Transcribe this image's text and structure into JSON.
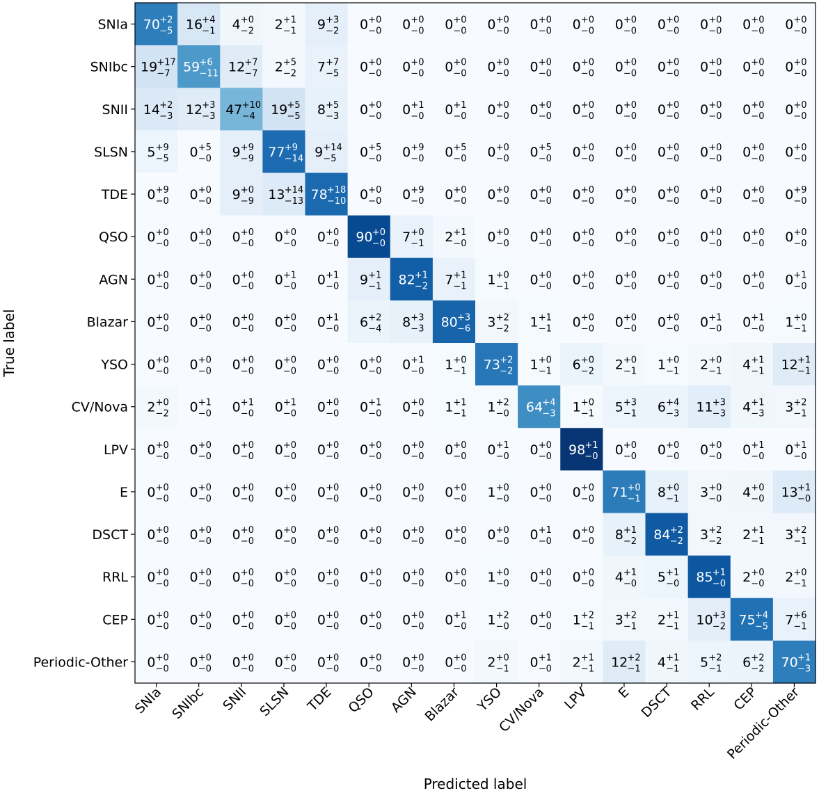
{
  "chart_data": {
    "type": "heatmap",
    "title": "",
    "xlabel": "Predicted label",
    "ylabel": "True label",
    "classes": [
      "SNIa",
      "SNIbc",
      "SNII",
      "SLSN",
      "TDE",
      "QSO",
      "AGN",
      "Blazar",
      "YSO",
      "CV/Nova",
      "LPV",
      "E",
      "DSCT",
      "RRL",
      "CEP",
      "Periodic-Other"
    ],
    "value_range": [
      0,
      100
    ],
    "colormap": "Blues",
    "values": [
      [
        70,
        16,
        4,
        2,
        9,
        0,
        0,
        0,
        0,
        0,
        0,
        0,
        0,
        0,
        0,
        0
      ],
      [
        19,
        59,
        12,
        2,
        7,
        0,
        0,
        0,
        0,
        0,
        0,
        0,
        0,
        0,
        0,
        0
      ],
      [
        14,
        12,
        47,
        19,
        8,
        0,
        0,
        0,
        0,
        0,
        0,
        0,
        0,
        0,
        0,
        0
      ],
      [
        5,
        0,
        9,
        77,
        9,
        0,
        0,
        0,
        0,
        0,
        0,
        0,
        0,
        0,
        0,
        0
      ],
      [
        0,
        0,
        9,
        13,
        78,
        0,
        0,
        0,
        0,
        0,
        0,
        0,
        0,
        0,
        0,
        0
      ],
      [
        0,
        0,
        0,
        0,
        0,
        90,
        7,
        2,
        0,
        0,
        0,
        0,
        0,
        0,
        0,
        0
      ],
      [
        0,
        0,
        0,
        0,
        0,
        9,
        82,
        7,
        1,
        0,
        0,
        0,
        0,
        0,
        0,
        0
      ],
      [
        0,
        0,
        0,
        0,
        0,
        6,
        8,
        80,
        3,
        1,
        0,
        0,
        0,
        0,
        0,
        1
      ],
      [
        0,
        0,
        0,
        0,
        0,
        0,
        0,
        1,
        73,
        1,
        6,
        2,
        1,
        2,
        4,
        12
      ],
      [
        2,
        0,
        0,
        0,
        0,
        0,
        0,
        1,
        1,
        64,
        1,
        5,
        6,
        11,
        4,
        3
      ],
      [
        0,
        0,
        0,
        0,
        0,
        0,
        0,
        0,
        0,
        0,
        98,
        0,
        0,
        0,
        0,
        0
      ],
      [
        0,
        0,
        0,
        0,
        0,
        0,
        0,
        0,
        1,
        0,
        0,
        71,
        8,
        3,
        4,
        13
      ],
      [
        0,
        0,
        0,
        0,
        0,
        0,
        0,
        0,
        0,
        0,
        0,
        8,
        84,
        3,
        2,
        3
      ],
      [
        0,
        0,
        0,
        0,
        0,
        0,
        0,
        0,
        1,
        0,
        0,
        4,
        5,
        85,
        2,
        2
      ],
      [
        0,
        0,
        0,
        0,
        0,
        0,
        0,
        0,
        1,
        0,
        1,
        3,
        2,
        10,
        75,
        7
      ],
      [
        0,
        0,
        0,
        0,
        0,
        0,
        0,
        0,
        2,
        0,
        2,
        12,
        4,
        5,
        6,
        70
      ]
    ],
    "err_plus": [
      [
        2,
        4,
        0,
        1,
        3,
        0,
        0,
        0,
        0,
        0,
        0,
        0,
        0,
        0,
        0,
        0
      ],
      [
        17,
        6,
        7,
        5,
        7,
        0,
        0,
        0,
        0,
        0,
        0,
        0,
        0,
        0,
        0,
        0
      ],
      [
        2,
        3,
        10,
        5,
        5,
        0,
        1,
        1,
        0,
        0,
        0,
        0,
        0,
        0,
        0,
        0
      ],
      [
        9,
        5,
        9,
        9,
        14,
        5,
        9,
        5,
        0,
        5,
        0,
        0,
        0,
        0,
        0,
        0
      ],
      [
        9,
        0,
        0,
        14,
        18,
        0,
        9,
        0,
        0,
        0,
        0,
        0,
        0,
        0,
        0,
        9
      ],
      [
        0,
        0,
        0,
        0,
        0,
        0,
        0,
        1,
        0,
        0,
        0,
        0,
        0,
        0,
        0,
        0
      ],
      [
        0,
        0,
        0,
        1,
        1,
        1,
        1,
        1,
        0,
        0,
        0,
        0,
        0,
        0,
        0,
        1
      ],
      [
        0,
        0,
        0,
        0,
        1,
        2,
        3,
        3,
        2,
        1,
        0,
        0,
        0,
        1,
        1,
        0
      ],
      [
        0,
        0,
        0,
        0,
        0,
        0,
        1,
        0,
        2,
        0,
        0,
        0,
        0,
        0,
        1,
        1
      ],
      [
        0,
        1,
        1,
        1,
        0,
        1,
        0,
        1,
        2,
        4,
        0,
        3,
        4,
        3,
        1,
        2
      ],
      [
        0,
        0,
        0,
        0,
        0,
        0,
        0,
        0,
        1,
        0,
        1,
        0,
        0,
        0,
        1,
        1
      ],
      [
        0,
        0,
        0,
        0,
        0,
        0,
        0,
        0,
        0,
        0,
        0,
        0,
        0,
        0,
        0,
        1
      ],
      [
        0,
        0,
        0,
        0,
        0,
        0,
        0,
        0,
        0,
        1,
        0,
        1,
        2,
        2,
        1,
        2
      ],
      [
        0,
        0,
        0,
        0,
        0,
        0,
        0,
        0,
        0,
        0,
        0,
        1,
        1,
        1,
        0,
        0
      ],
      [
        0,
        0,
        0,
        0,
        0,
        0,
        0,
        1,
        2,
        0,
        2,
        2,
        1,
        3,
        4,
        6
      ],
      [
        0,
        0,
        0,
        0,
        0,
        0,
        0,
        0,
        0,
        1,
        1,
        2,
        1,
        2,
        2,
        1
      ]
    ],
    "err_minus": [
      [
        5,
        1,
        2,
        1,
        2,
        0,
        0,
        0,
        0,
        0,
        0,
        0,
        0,
        0,
        0,
        0
      ],
      [
        7,
        11,
        7,
        2,
        5,
        0,
        0,
        0,
        0,
        0,
        0,
        0,
        0,
        0,
        0,
        0
      ],
      [
        3,
        3,
        4,
        5,
        3,
        0,
        0,
        0,
        0,
        0,
        0,
        0,
        0,
        0,
        0,
        0
      ],
      [
        5,
        0,
        9,
        14,
        5,
        0,
        0,
        0,
        0,
        0,
        0,
        0,
        0,
        0,
        0,
        0
      ],
      [
        0,
        0,
        9,
        13,
        10,
        0,
        0,
        0,
        0,
        0,
        0,
        0,
        0,
        0,
        0,
        0
      ],
      [
        0,
        0,
        0,
        0,
        0,
        0,
        1,
        0,
        0,
        0,
        0,
        0,
        0,
        0,
        0,
        0
      ],
      [
        0,
        0,
        0,
        0,
        0,
        1,
        2,
        1,
        1,
        0,
        0,
        0,
        0,
        0,
        0,
        0
      ],
      [
        0,
        0,
        0,
        0,
        0,
        4,
        3,
        6,
        2,
        1,
        0,
        0,
        0,
        0,
        0,
        1
      ],
      [
        0,
        0,
        0,
        0,
        0,
        0,
        0,
        1,
        2,
        1,
        2,
        1,
        1,
        1,
        1,
        1
      ],
      [
        2,
        0,
        0,
        0,
        0,
        0,
        0,
        1,
        0,
        3,
        1,
        1,
        3,
        3,
        3,
        1
      ],
      [
        0,
        0,
        0,
        0,
        0,
        0,
        0,
        0,
        0,
        0,
        0,
        0,
        0,
        0,
        0,
        0
      ],
      [
        0,
        0,
        0,
        0,
        0,
        0,
        0,
        0,
        0,
        0,
        0,
        1,
        1,
        0,
        0,
        0
      ],
      [
        0,
        0,
        0,
        0,
        0,
        0,
        0,
        0,
        0,
        0,
        0,
        2,
        2,
        2,
        1,
        1
      ],
      [
        0,
        0,
        0,
        0,
        0,
        0,
        0,
        0,
        0,
        0,
        0,
        0,
        0,
        0,
        0,
        1
      ],
      [
        0,
        0,
        0,
        0,
        0,
        0,
        0,
        0,
        0,
        0,
        1,
        1,
        1,
        2,
        5,
        1
      ],
      [
        0,
        0,
        0,
        0,
        0,
        0,
        0,
        0,
        1,
        0,
        1,
        1,
        1,
        1,
        2,
        3
      ]
    ]
  }
}
